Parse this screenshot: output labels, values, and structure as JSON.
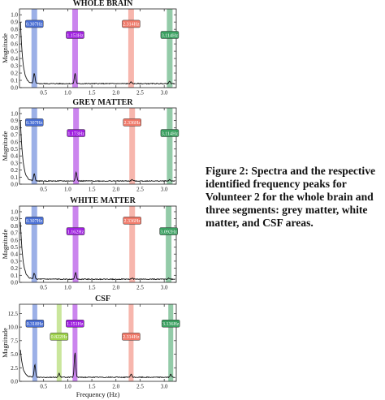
{
  "caption": "Figure 2: Spectra and the respective identified frequency peaks for Volunteer 2 for the whole brain and three segments: grey matter, white matter, and CSF areas.",
  "colors": {
    "blue": "#4a6fd4",
    "purple": "#a020e0",
    "red": "#f07a6a",
    "green": "#3aa060",
    "lime": "#9ed24a",
    "line": "#111111"
  },
  "chart_data": [
    {
      "type": "line",
      "title": "WHOLE BRAIN",
      "ylabel": "Magnitude",
      "xlabel": "",
      "xlim": [
        0,
        3.25
      ],
      "ylim": [
        0,
        1.08
      ],
      "xticks": [
        "0.5",
        "1.0",
        "1.5",
        "2.0",
        "2.5",
        "3.0"
      ],
      "yticks": [
        "0.0",
        "0.1",
        "0.2",
        "0.3",
        "0.4",
        "0.5",
        "0.6",
        "0.7",
        "0.8",
        "0.9",
        "1.0"
      ],
      "peaks": [
        {
          "freq": 0.307,
          "label": "0.307Hz",
          "color": "blue"
        },
        {
          "freq": 1.153,
          "label": "1.153Hz",
          "color": "purple"
        },
        {
          "freq": 2.314,
          "label": "2.314Hz",
          "color": "red"
        },
        {
          "freq": 3.114,
          "label": "3.114Hz",
          "color": "green"
        }
      ],
      "spectrum": {
        "base": 0.055,
        "start": 0.9,
        "decay": 0.05,
        "bumps": [
          [
            0.307,
            0.14
          ],
          [
            1.153,
            0.14
          ],
          [
            2.314,
            0.02
          ],
          [
            3.114,
            0.03
          ]
        ]
      }
    },
    {
      "type": "line",
      "title": "GREY MATTER",
      "ylabel": "Magnitude",
      "xlabel": "",
      "xlim": [
        0,
        3.25
      ],
      "ylim": [
        0,
        1.08
      ],
      "xticks": [
        "0.5",
        "1.0",
        "1.5",
        "2.0",
        "2.5",
        "3.0"
      ],
      "yticks": [
        "0.0",
        "0.1",
        "0.2",
        "0.3",
        "0.4",
        "0.5",
        "0.6",
        "0.7",
        "0.8",
        "0.9",
        "1.0"
      ],
      "peaks": [
        {
          "freq": 0.307,
          "label": "0.307Hz",
          "color": "blue"
        },
        {
          "freq": 1.173,
          "label": "1.173Hz",
          "color": "purple"
        },
        {
          "freq": 2.336,
          "label": "2.336Hz",
          "color": "red"
        },
        {
          "freq": 3.114,
          "label": "3.114Hz",
          "color": "green"
        }
      ],
      "spectrum": {
        "base": 0.045,
        "start": 0.9,
        "decay": 0.05,
        "bumps": [
          [
            0.307,
            0.1
          ],
          [
            1.173,
            0.13
          ],
          [
            2.336,
            0.02
          ],
          [
            3.114,
            0.02
          ]
        ]
      }
    },
    {
      "type": "line",
      "title": "WHITE MATTER",
      "ylabel": "Magnitude",
      "xlabel": "",
      "xlim": [
        0,
        3.25
      ],
      "ylim": [
        0,
        1.08
      ],
      "xticks": [
        "0.5",
        "1.0",
        "1.5",
        "2.0",
        "2.5",
        "3.0"
      ],
      "yticks": [
        "0.0",
        "0.1",
        "0.2",
        "0.3",
        "0.4",
        "0.5",
        "0.6",
        "0.7",
        "0.8",
        "0.9",
        "1.0"
      ],
      "peaks": [
        {
          "freq": 0.307,
          "label": "0.307Hz",
          "color": "blue"
        },
        {
          "freq": 1.162,
          "label": "1.162Hz",
          "color": "purple"
        },
        {
          "freq": 2.336,
          "label": "2.336Hz",
          "color": "red"
        },
        {
          "freq": 3.092,
          "label": "3.092Hz",
          "color": "green"
        }
      ],
      "spectrum": {
        "base": 0.045,
        "start": 0.85,
        "decay": 0.05,
        "bumps": [
          [
            0.307,
            0.08
          ],
          [
            1.162,
            0.09
          ],
          [
            2.336,
            0.015
          ],
          [
            3.092,
            0.015
          ]
        ]
      }
    },
    {
      "type": "line",
      "title": "CSF",
      "ylabel": "Magnitude",
      "xlabel": "Frequency (Hz)",
      "xlim": [
        0,
        3.25
      ],
      "ylim": [
        0,
        14.2
      ],
      "xticks": [
        "0.5",
        "1.0",
        "1.5",
        "2.0",
        "2.5",
        "3.0"
      ],
      "yticks": [
        "0.0",
        "2.5",
        "5.0",
        "7.5",
        "10.0",
        "12.5"
      ],
      "peaks": [
        {
          "freq": 0.318,
          "label": "0.318Hz",
          "color": "blue"
        },
        {
          "freq": 0.822,
          "label": "0.822Hz",
          "color": "lime"
        },
        {
          "freq": 1.151,
          "label": "1.151Hz",
          "color": "purple"
        },
        {
          "freq": 2.314,
          "label": "2.314Hz",
          "color": "red"
        },
        {
          "freq": 3.136,
          "label": "3.136Hz",
          "color": "green"
        }
      ],
      "spectrum": {
        "base": 0.75,
        "start": 5.8,
        "decay": 0.05,
        "bumps": [
          [
            0.318,
            2.3
          ],
          [
            0.822,
            0.7
          ],
          [
            1.151,
            4.5
          ],
          [
            2.314,
            0.55
          ],
          [
            3.136,
            0.5
          ]
        ]
      }
    }
  ]
}
